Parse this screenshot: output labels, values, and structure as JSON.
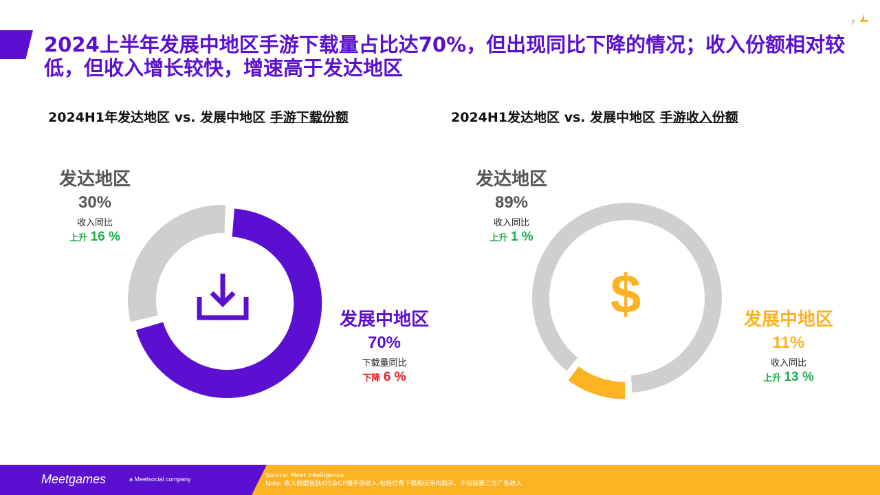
{
  "page_number": "7",
  "title": "2024上半年发展中地区手游下载量占比达70%，但出现同比下降的情况；收入份额相对较低，但收入增长较快，增速高于发达地区",
  "colors": {
    "purple": "#5b0fd0",
    "gray": "#cfcfcf",
    "yellow": "#fbb324",
    "gray_text": "#555555",
    "up": "#1fae4b",
    "down": "#e51d1d"
  },
  "left_panel": {
    "subtitle_main": "2024H1年发达地区 vs. 发展中地区 ",
    "subtitle_underlined": "手游下载份额",
    "center_icon": "download-icon",
    "developed": {
      "name": "发达地区",
      "share": "30%",
      "metric": "收入同比",
      "direction": "上升",
      "change": "16 %"
    },
    "developing": {
      "name": "发展中地区",
      "share": "70%",
      "metric": "下载量同比",
      "direction": "下降",
      "change": "6 %"
    }
  },
  "right_panel": {
    "subtitle_main": "2024H1发达地区 vs. 发展中地区 ",
    "subtitle_underlined": "手游收入份额",
    "center_icon": "dollar-icon",
    "center_symbol": "$",
    "developed": {
      "name": "发达地区",
      "share": "89%",
      "metric": "收入同比",
      "direction": "上升",
      "change": "1 %"
    },
    "developing": {
      "name": "发展中地区",
      "share": "11%",
      "metric": "收入同比",
      "direction": "上升",
      "change": "13 %"
    }
  },
  "chart_data": [
    {
      "type": "pie",
      "title": "2024H1年发达地区 vs. 发展中地区 手游下载份额",
      "categories": [
        "发达地区",
        "发展中地区"
      ],
      "values": [
        30,
        70
      ],
      "colors": [
        "#cfcfcf",
        "#5b0fd0"
      ],
      "exploded": "发展中地区"
    },
    {
      "type": "pie",
      "title": "2024H1发达地区 vs. 发展中地区 手游收入份额",
      "categories": [
        "发达地区",
        "发展中地区"
      ],
      "values": [
        89,
        11
      ],
      "colors": [
        "#cfcfcf",
        "#fbb324"
      ],
      "exploded": "发展中地区"
    }
  ],
  "footer": {
    "brand": "Meetgames",
    "brand_sub": "a Meetsocial company",
    "source": "Source: Meet Intelligence",
    "note": "Note: 收入数据包括iOS及GP端手游收入-包括付费下载和应用内购买，不包括第三方广告收入"
  }
}
